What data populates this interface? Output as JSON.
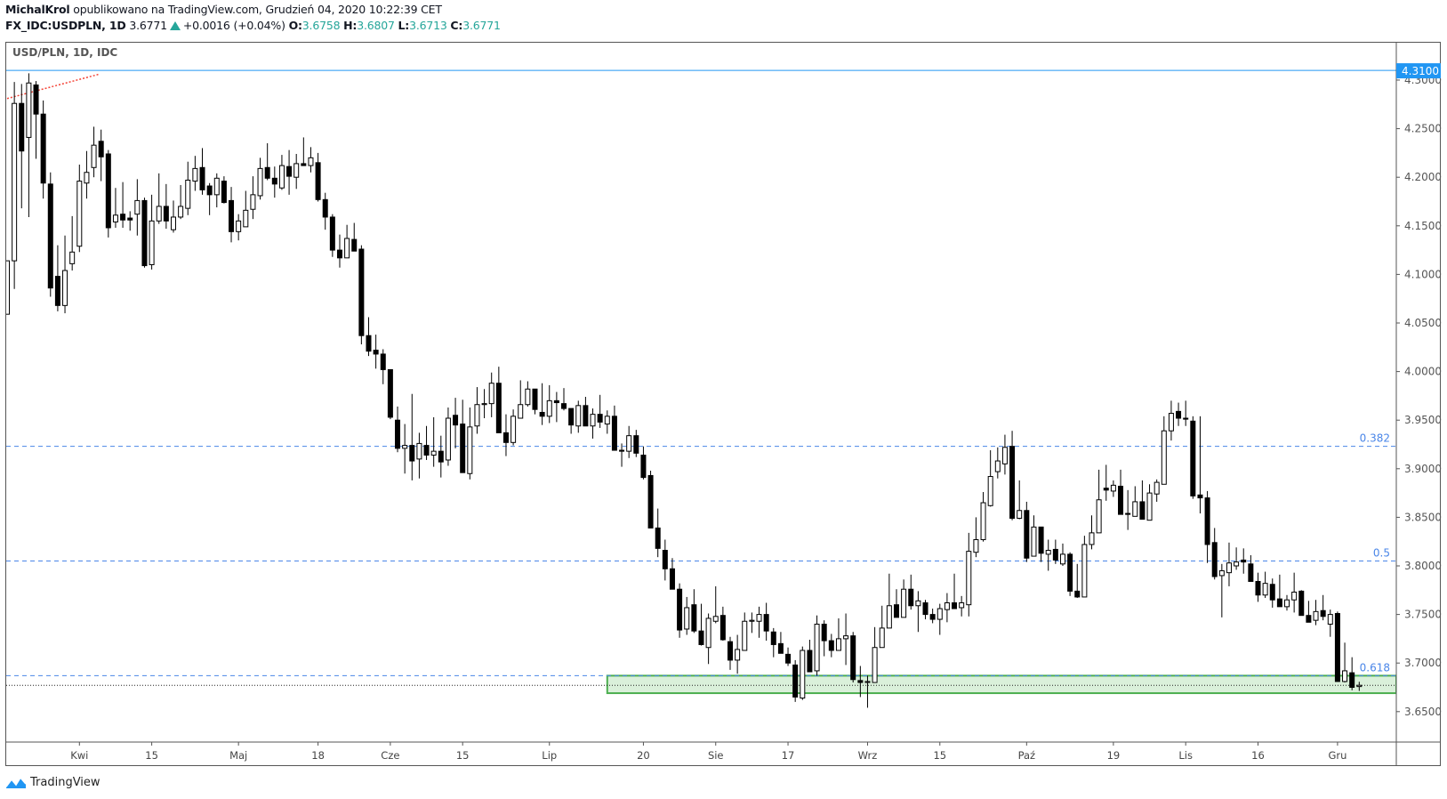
{
  "header": {
    "author": "MichalKrol",
    "published": "opublikowano na TradingView.com, Grudzień 04, 2020 10:22:39 CET",
    "symbol": "FX_IDC:USDPLN, 1D",
    "last": "3.6771",
    "change": "+0.0016 (+0.04%)",
    "o_label": "O:",
    "o": "3.6758",
    "h_label": "H:",
    "h": "3.6807",
    "l_label": "L:",
    "l": "3.6713",
    "c_label": "C:",
    "c": "3.6771",
    "up_color": "#26a69a"
  },
  "legend": "USD/PLN, 1D, IDC",
  "footer": {
    "brand": "TradingView",
    "icon": "tradingview-logo-icon"
  },
  "chart_data": {
    "type": "candlestick",
    "title": "USD/PLN, 1D, IDC",
    "ylim": [
      3.625,
      4.335
    ],
    "y_ticks": [
      "4.3000",
      "4.2500",
      "4.2000",
      "4.1500",
      "4.1000",
      "4.0500",
      "4.0000",
      "3.9500",
      "3.9000",
      "3.8500",
      "3.8000",
      "3.7500",
      "3.7000",
      "3.6500"
    ],
    "x_ticks": [
      {
        "label": "Kwi",
        "bar": 11
      },
      {
        "label": "15",
        "bar": 21
      },
      {
        "label": "Maj",
        "bar": 33
      },
      {
        "label": "18",
        "bar": 44
      },
      {
        "label": "Cze",
        "bar": 54
      },
      {
        "label": "15",
        "bar": 64
      },
      {
        "label": "Lip",
        "bar": 76
      },
      {
        "label": "20",
        "bar": 89
      },
      {
        "label": "Sie",
        "bar": 99
      },
      {
        "label": "17",
        "bar": 109
      },
      {
        "label": "Wrz",
        "bar": 120
      },
      {
        "label": "15",
        "bar": 130
      },
      {
        "label": "Paź",
        "bar": 142
      },
      {
        "label": "19",
        "bar": 154
      },
      {
        "label": "Lis",
        "bar": 164
      },
      {
        "label": "16",
        "bar": 174
      },
      {
        "label": "Gru",
        "bar": 185
      }
    ],
    "ohlc_columns": [
      "open",
      "high",
      "low",
      "close"
    ],
    "candles": [
      [
        4.059,
        4.114,
        4.059,
        4.114
      ],
      [
        4.114,
        4.298,
        4.085,
        4.276
      ],
      [
        4.276,
        4.296,
        4.168,
        4.227
      ],
      [
        4.241,
        4.307,
        4.159,
        4.297
      ],
      [
        4.295,
        4.299,
        4.219,
        4.265
      ],
      [
        4.265,
        4.279,
        4.178,
        4.194
      ],
      [
        4.193,
        4.205,
        4.077,
        4.086
      ],
      [
        4.098,
        4.13,
        4.062,
        4.068
      ],
      [
        4.068,
        4.14,
        4.06,
        4.104
      ],
      [
        4.111,
        4.16,
        4.104,
        4.123
      ],
      [
        4.129,
        4.213,
        4.123,
        4.196
      ],
      [
        4.194,
        4.227,
        4.178,
        4.205
      ],
      [
        4.21,
        4.252,
        4.2,
        4.233
      ],
      [
        4.237,
        4.249,
        4.196,
        4.221
      ],
      [
        4.224,
        4.228,
        4.138,
        4.148
      ],
      [
        4.154,
        4.189,
        4.148,
        4.161
      ],
      [
        4.162,
        4.195,
        4.148,
        4.156
      ],
      [
        4.158,
        4.165,
        4.145,
        4.156
      ],
      [
        4.162,
        4.198,
        4.14,
        4.176
      ],
      [
        4.176,
        4.179,
        4.107,
        4.109
      ],
      [
        4.11,
        4.182,
        4.105,
        4.155
      ],
      [
        4.155,
        4.204,
        4.152,
        4.17
      ],
      [
        4.17,
        4.193,
        4.147,
        4.155
      ],
      [
        4.146,
        4.176,
        4.143,
        4.159
      ],
      [
        4.159,
        4.192,
        4.157,
        4.17
      ],
      [
        4.168,
        4.216,
        4.161,
        4.197
      ],
      [
        4.196,
        4.222,
        4.186,
        4.209
      ],
      [
        4.21,
        4.23,
        4.182,
        4.187
      ],
      [
        4.191,
        4.194,
        4.161,
        4.182
      ],
      [
        4.182,
        4.204,
        4.169,
        4.199
      ],
      [
        4.196,
        4.201,
        4.173,
        4.174
      ],
      [
        4.176,
        4.19,
        4.133,
        4.144
      ],
      [
        4.144,
        4.162,
        4.135,
        4.155
      ],
      [
        4.149,
        4.186,
        4.149,
        4.166
      ],
      [
        4.167,
        4.201,
        4.157,
        4.182
      ],
      [
        4.181,
        4.22,
        4.177,
        4.209
      ],
      [
        4.21,
        4.235,
        4.197,
        4.199
      ],
      [
        4.199,
        4.211,
        4.179,
        4.193
      ],
      [
        4.189,
        4.223,
        4.187,
        4.212
      ],
      [
        4.211,
        4.228,
        4.182,
        4.201
      ],
      [
        4.2,
        4.224,
        4.188,
        4.214
      ],
      [
        4.214,
        4.241,
        4.212,
        4.212
      ],
      [
        4.212,
        4.231,
        4.205,
        4.22
      ],
      [
        4.215,
        4.225,
        4.175,
        4.177
      ],
      [
        4.177,
        4.184,
        4.146,
        4.159
      ],
      [
        4.159,
        4.162,
        4.118,
        4.125
      ],
      [
        4.125,
        4.141,
        4.107,
        4.117
      ],
      [
        4.117,
        4.151,
        4.117,
        4.137
      ],
      [
        4.136,
        4.153,
        4.124,
        4.124
      ],
      [
        4.126,
        4.13,
        4.028,
        4.037
      ],
      [
        4.037,
        4.056,
        4.016,
        4.021
      ],
      [
        4.022,
        4.038,
        4.003,
        4.018
      ],
      [
        4.018,
        4.023,
        3.987,
        4.002
      ],
      [
        4.002,
        4.002,
        3.951,
        3.953
      ],
      [
        3.95,
        3.964,
        3.917,
        3.921
      ],
      [
        3.921,
        3.946,
        3.895,
        3.924
      ],
      [
        3.924,
        3.977,
        3.888,
        3.908
      ],
      [
        3.91,
        3.937,
        3.89,
        3.926
      ],
      [
        3.924,
        3.944,
        3.909,
        3.914
      ],
      [
        3.914,
        3.953,
        3.902,
        3.918
      ],
      [
        3.918,
        3.934,
        3.891,
        3.907
      ],
      [
        3.909,
        3.963,
        3.903,
        3.952
      ],
      [
        3.955,
        3.973,
        3.921,
        3.945
      ],
      [
        3.946,
        3.971,
        3.896,
        3.896
      ],
      [
        3.895,
        3.963,
        3.889,
        3.943
      ],
      [
        3.944,
        3.984,
        3.936,
        3.966
      ],
      [
        3.966,
        3.982,
        3.952,
        3.967
      ],
      [
        3.967,
        3.999,
        3.953,
        3.988
      ],
      [
        3.988,
        4.005,
        3.937,
        3.937
      ],
      [
        3.937,
        3.956,
        3.913,
        3.927
      ],
      [
        3.927,
        3.961,
        3.924,
        3.954
      ],
      [
        3.952,
        3.991,
        3.952,
        3.966
      ],
      [
        3.966,
        3.99,
        3.964,
        3.982
      ],
      [
        3.982,
        3.982,
        3.956,
        3.961
      ],
      [
        3.958,
        3.988,
        3.945,
        3.954
      ],
      [
        3.954,
        3.986,
        3.947,
        3.97
      ],
      [
        3.97,
        3.979,
        3.948,
        3.968
      ],
      [
        3.967,
        3.983,
        3.96,
        3.962
      ],
      [
        3.962,
        3.962,
        3.936,
        3.945
      ],
      [
        3.944,
        3.97,
        3.937,
        3.965
      ],
      [
        3.965,
        3.974,
        3.944,
        3.944
      ],
      [
        3.944,
        3.962,
        3.931,
        3.956
      ],
      [
        3.956,
        3.976,
        3.942,
        3.948
      ],
      [
        3.946,
        3.96,
        3.936,
        3.954
      ],
      [
        3.954,
        3.965,
        3.919,
        3.919
      ],
      [
        3.919,
        3.926,
        3.902,
        3.918
      ],
      [
        3.918,
        3.944,
        3.911,
        3.934
      ],
      [
        3.934,
        3.94,
        3.912,
        3.916
      ],
      [
        3.914,
        3.923,
        3.889,
        3.891
      ],
      [
        3.893,
        3.898,
        3.839,
        3.839
      ],
      [
        3.839,
        3.859,
        3.809,
        3.818
      ],
      [
        3.816,
        3.827,
        3.785,
        3.797
      ],
      [
        3.797,
        3.808,
        3.776,
        3.776
      ],
      [
        3.776,
        3.782,
        3.726,
        3.734
      ],
      [
        3.735,
        3.768,
        3.729,
        3.757
      ],
      [
        3.76,
        3.776,
        3.731,
        3.733
      ],
      [
        3.733,
        3.761,
        3.718,
        3.719
      ],
      [
        3.716,
        3.751,
        3.699,
        3.746
      ],
      [
        3.743,
        3.779,
        3.741,
        3.748
      ],
      [
        3.749,
        3.758,
        3.723,
        3.724
      ],
      [
        3.722,
        3.727,
        3.693,
        3.703
      ],
      [
        3.703,
        3.729,
        3.689,
        3.714
      ],
      [
        3.713,
        3.752,
        3.713,
        3.743
      ],
      [
        3.743,
        3.752,
        3.731,
        3.744
      ],
      [
        3.743,
        3.758,
        3.726,
        3.75
      ],
      [
        3.75,
        3.762,
        3.723,
        3.733
      ],
      [
        3.732,
        3.736,
        3.706,
        3.719
      ],
      [
        3.72,
        3.732,
        3.71,
        3.71
      ],
      [
        3.709,
        3.716,
        3.697,
        3.7
      ],
      [
        3.698,
        3.703,
        3.66,
        3.665
      ],
      [
        3.664,
        3.717,
        3.662,
        3.713
      ],
      [
        3.713,
        3.724,
        3.691,
        3.691
      ],
      [
        3.692,
        3.749,
        3.687,
        3.74
      ],
      [
        3.74,
        3.744,
        3.707,
        3.723
      ],
      [
        3.723,
        3.73,
        3.706,
        3.713
      ],
      [
        3.713,
        3.746,
        3.713,
        3.725
      ],
      [
        3.725,
        3.751,
        3.698,
        3.728
      ],
      [
        3.728,
        3.732,
        3.68,
        3.683
      ],
      [
        3.682,
        3.697,
        3.665,
        3.68
      ],
      [
        3.68,
        3.687,
        3.654,
        3.681
      ],
      [
        3.68,
        3.737,
        3.68,
        3.716
      ],
      [
        3.716,
        3.759,
        3.716,
        3.736
      ],
      [
        3.736,
        3.792,
        3.736,
        3.759
      ],
      [
        3.76,
        3.776,
        3.747,
        3.747
      ],
      [
        3.747,
        3.786,
        3.747,
        3.776
      ],
      [
        3.776,
        3.791,
        3.755,
        3.759
      ],
      [
        3.759,
        3.774,
        3.732,
        3.764
      ],
      [
        3.762,
        3.765,
        3.745,
        3.75
      ],
      [
        3.75,
        3.756,
        3.741,
        3.745
      ],
      [
        3.745,
        3.761,
        3.729,
        3.756
      ],
      [
        3.755,
        3.772,
        3.742,
        3.762
      ],
      [
        3.762,
        3.792,
        3.756,
        3.756
      ],
      [
        3.757,
        3.769,
        3.748,
        3.762
      ],
      [
        3.76,
        3.834,
        3.748,
        3.815
      ],
      [
        3.814,
        3.85,
        3.809,
        3.827
      ],
      [
        3.827,
        3.876,
        3.825,
        3.865
      ],
      [
        3.862,
        3.919,
        3.861,
        3.892
      ],
      [
        3.897,
        3.922,
        3.89,
        3.908
      ],
      [
        3.905,
        3.935,
        3.894,
        3.922
      ],
      [
        3.923,
        3.939,
        3.847,
        3.849
      ],
      [
        3.849,
        3.888,
        3.848,
        3.857
      ],
      [
        3.857,
        3.866,
        3.804,
        3.808
      ],
      [
        3.81,
        3.852,
        3.81,
        3.84
      ],
      [
        3.84,
        3.84,
        3.804,
        3.813
      ],
      [
        3.812,
        3.827,
        3.795,
        3.816
      ],
      [
        3.817,
        3.827,
        3.802,
        3.806
      ],
      [
        3.802,
        3.823,
        3.8,
        3.812
      ],
      [
        3.812,
        3.814,
        3.769,
        3.774
      ],
      [
        3.774,
        3.802,
        3.767,
        3.768
      ],
      [
        3.768,
        3.831,
        3.768,
        3.822
      ],
      [
        3.822,
        3.852,
        3.817,
        3.834
      ],
      [
        3.834,
        3.899,
        3.834,
        3.868
      ],
      [
        3.88,
        3.904,
        3.867,
        3.878
      ],
      [
        3.877,
        3.888,
        3.871,
        3.883
      ],
      [
        3.882,
        3.899,
        3.853,
        3.853
      ],
      [
        3.854,
        3.878,
        3.837,
        3.853
      ],
      [
        3.851,
        3.882,
        3.851,
        3.866
      ],
      [
        3.866,
        3.888,
        3.848,
        3.848
      ],
      [
        3.847,
        3.884,
        3.847,
        3.875
      ],
      [
        3.874,
        3.889,
        3.866,
        3.886
      ],
      [
        3.884,
        3.954,
        3.884,
        3.939
      ],
      [
        3.939,
        3.97,
        3.929,
        3.957
      ],
      [
        3.959,
        3.968,
        3.944,
        3.952
      ],
      [
        3.952,
        3.97,
        3.944,
        3.951
      ],
      [
        3.949,
        3.954,
        3.869,
        3.872
      ],
      [
        3.873,
        3.954,
        3.854,
        3.87
      ],
      [
        3.87,
        3.877,
        3.803,
        3.822
      ],
      [
        3.824,
        3.839,
        3.786,
        3.789
      ],
      [
        3.79,
        3.802,
        3.747,
        3.795
      ],
      [
        3.793,
        3.824,
        3.779,
        3.803
      ],
      [
        3.8,
        3.819,
        3.796,
        3.804
      ],
      [
        3.806,
        3.818,
        3.792,
        3.804
      ],
      [
        3.802,
        3.811,
        3.784,
        3.784
      ],
      [
        3.784,
        3.793,
        3.763,
        3.77
      ],
      [
        3.77,
        3.794,
        3.767,
        3.782
      ],
      [
        3.781,
        3.787,
        3.757,
        3.765
      ],
      [
        3.766,
        3.791,
        3.758,
        3.758
      ],
      [
        3.758,
        3.77,
        3.754,
        3.765
      ],
      [
        3.765,
        3.793,
        3.752,
        3.773
      ],
      [
        3.774,
        3.775,
        3.749,
        3.749
      ],
      [
        3.749,
        3.764,
        3.742,
        3.742
      ],
      [
        3.744,
        3.765,
        3.739,
        3.753
      ],
      [
        3.754,
        3.77,
        3.744,
        3.748
      ],
      [
        3.74,
        3.755,
        3.727,
        3.75
      ],
      [
        3.751,
        3.753,
        3.681,
        3.681
      ],
      [
        3.681,
        3.721,
        3.68,
        3.692
      ],
      [
        3.69,
        3.706,
        3.672,
        3.675
      ],
      [
        3.6758,
        3.6807,
        3.6713,
        3.6771
      ]
    ],
    "horizontal_line": {
      "price": 4.31,
      "label": "4.3100",
      "color": "#2196f3"
    },
    "fib_levels": [
      {
        "label": "0.382",
        "price": 3.923
      },
      {
        "label": "0.5",
        "price": 3.805
      },
      {
        "label": "0.618",
        "price": 3.687
      }
    ],
    "fib_color": "#4a86e8",
    "support_zone": {
      "from_bar": 84,
      "price_low": 3.669,
      "price_high": 3.687,
      "fill": "#daf0da",
      "stroke": "#4caf50"
    },
    "trendline": {
      "points": [
        [
          1,
          4.281
        ],
        [
          13.7,
          4.306
        ]
      ],
      "color": "#f44336"
    },
    "last_price_line": 3.6771
  }
}
